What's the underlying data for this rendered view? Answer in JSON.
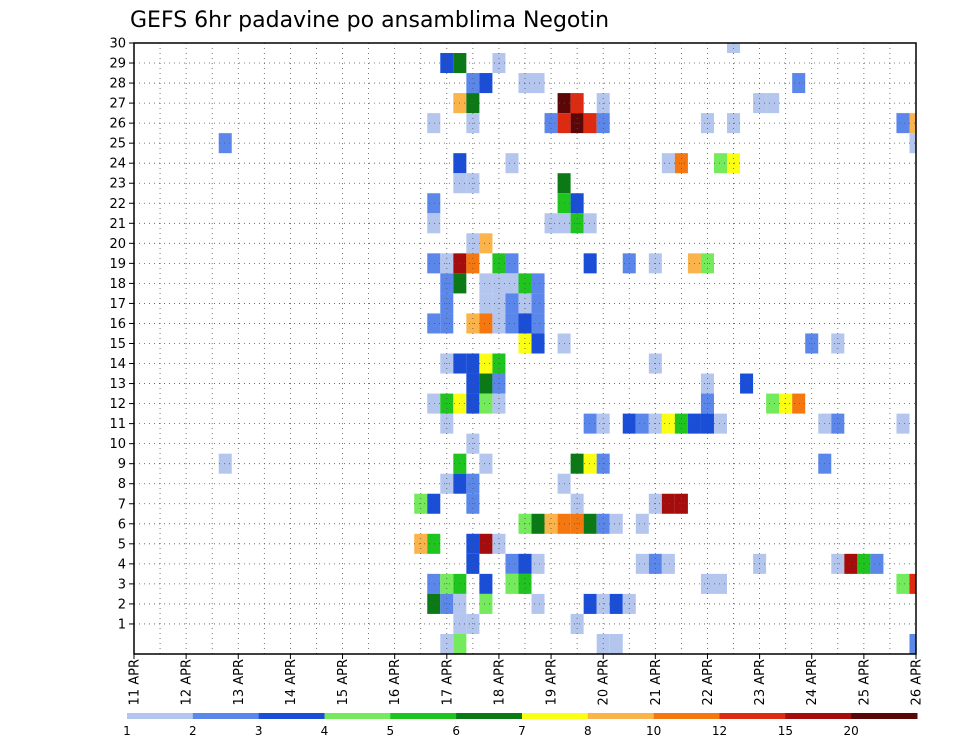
{
  "chart_data": {
    "type": "heatmap",
    "title": "GEFS 6hr padavine po ansamblima Negotin",
    "xlabel": "",
    "ylabel": "",
    "x_ticks": [
      "11 APR",
      "12 APR",
      "13 APR",
      "14 APR",
      "15 APR",
      "16 APR",
      "17 APR",
      "18 APR",
      "19 APR",
      "20 APR",
      "21 APR",
      "22 APR",
      "23 APR",
      "24 APR",
      "25 APR",
      "26 APR"
    ],
    "y_ticks": [
      "1",
      "2",
      "3",
      "4",
      "5",
      "6",
      "7",
      "8",
      "9",
      "10",
      "11",
      "12",
      "13",
      "14",
      "15",
      "16",
      "17",
      "18",
      "19",
      "20",
      "21",
      "22",
      "23",
      "24",
      "25",
      "26",
      "27",
      "28",
      "29",
      "30"
    ],
    "x_range": [
      "11 APR 00Z",
      "26 APR 00Z"
    ],
    "x_step_hours": 6,
    "y_range": [
      0,
      30
    ],
    "grid": true,
    "legend": {
      "position": "bottom",
      "labels": [
        "1",
        "2",
        "3",
        "4",
        "5",
        "6",
        "7",
        "8",
        "10",
        "12",
        "15",
        "20"
      ],
      "colors": [
        "#b4c6ee",
        "#5b87ea",
        "#1a4ed6",
        "#74ea5c",
        "#1fc41f",
        "#0b7a16",
        "#fbff14",
        "#fbb44b",
        "#f4780f",
        "#df2a12",
        "#a50d0d",
        "#5c0707"
      ]
    },
    "cells": [
      {
        "member": 30,
        "step": 46,
        "color": "#b4c6ee"
      },
      {
        "member": 29,
        "step": 24,
        "color": "#1a4ed6"
      },
      {
        "member": 29,
        "step": 25,
        "color": "#0b7a16"
      },
      {
        "member": 29,
        "step": 28,
        "color": "#b4c6ee"
      },
      {
        "member": 28,
        "step": 26,
        "color": "#5b87ea"
      },
      {
        "member": 28,
        "step": 27,
        "color": "#1a4ed6"
      },
      {
        "member": 28,
        "step": 30,
        "color": "#b4c6ee"
      },
      {
        "member": 28,
        "step": 31,
        "color": "#b4c6ee"
      },
      {
        "member": 28,
        "step": 51,
        "color": "#5b87ea"
      },
      {
        "member": 27,
        "step": 25,
        "color": "#fbb44b"
      },
      {
        "member": 27,
        "step": 26,
        "color": "#0b7a16"
      },
      {
        "member": 27,
        "step": 33,
        "color": "#5c0707"
      },
      {
        "member": 27,
        "step": 34,
        "color": "#df2a12"
      },
      {
        "member": 27,
        "step": 36,
        "color": "#b4c6ee"
      },
      {
        "member": 27,
        "step": 48,
        "color": "#b4c6ee"
      },
      {
        "member": 27,
        "step": 49,
        "color": "#b4c6ee"
      },
      {
        "member": 26,
        "step": 23,
        "color": "#b4c6ee"
      },
      {
        "member": 26,
        "step": 26,
        "color": "#b4c6ee"
      },
      {
        "member": 26,
        "step": 32,
        "color": "#5b87ea"
      },
      {
        "member": 26,
        "step": 33,
        "color": "#df2a12"
      },
      {
        "member": 26,
        "step": 34,
        "color": "#5c0707"
      },
      {
        "member": 26,
        "step": 35,
        "color": "#df2a12"
      },
      {
        "member": 26,
        "step": 36,
        "color": "#5b87ea"
      },
      {
        "member": 26,
        "step": 44,
        "color": "#b4c6ee"
      },
      {
        "member": 26,
        "step": 46,
        "color": "#b4c6ee"
      },
      {
        "member": 26,
        "step": 59,
        "color": "#5b87ea"
      },
      {
        "member": 26,
        "step": 60,
        "color": "#fbb44b"
      },
      {
        "member": 25,
        "step": 7,
        "color": "#5b87ea"
      },
      {
        "member": 25,
        "step": 60,
        "color": "#b4c6ee"
      },
      {
        "member": 24,
        "step": 25,
        "color": "#1a4ed6"
      },
      {
        "member": 24,
        "step": 29,
        "color": "#b4c6ee"
      },
      {
        "member": 24,
        "step": 41,
        "color": "#b4c6ee"
      },
      {
        "member": 24,
        "step": 42,
        "color": "#f4780f"
      },
      {
        "member": 24,
        "step": 45,
        "color": "#74ea5c"
      },
      {
        "member": 24,
        "step": 46,
        "color": "#fbff14"
      },
      {
        "member": 23,
        "step": 25,
        "color": "#b4c6ee"
      },
      {
        "member": 23,
        "step": 26,
        "color": "#b4c6ee"
      },
      {
        "member": 23,
        "step": 33,
        "color": "#0b7a16"
      },
      {
        "member": 22,
        "step": 23,
        "color": "#5b87ea"
      },
      {
        "member": 22,
        "step": 33,
        "color": "#1fc41f"
      },
      {
        "member": 22,
        "step": 34,
        "color": "#1a4ed6"
      },
      {
        "member": 21,
        "step": 23,
        "color": "#b4c6ee"
      },
      {
        "member": 21,
        "step": 32,
        "color": "#b4c6ee"
      },
      {
        "member": 21,
        "step": 33,
        "color": "#b4c6ee"
      },
      {
        "member": 21,
        "step": 34,
        "color": "#1fc41f"
      },
      {
        "member": 21,
        "step": 35,
        "color": "#b4c6ee"
      },
      {
        "member": 20,
        "step": 26,
        "color": "#b4c6ee"
      },
      {
        "member": 20,
        "step": 27,
        "color": "#fbb44b"
      },
      {
        "member": 19,
        "step": 23,
        "color": "#5b87ea"
      },
      {
        "member": 19,
        "step": 24,
        "color": "#b4c6ee"
      },
      {
        "member": 19,
        "step": 25,
        "color": "#a50d0d"
      },
      {
        "member": 19,
        "step": 26,
        "color": "#f4780f"
      },
      {
        "member": 19,
        "step": 28,
        "color": "#1fc41f"
      },
      {
        "member": 19,
        "step": 29,
        "color": "#5b87ea"
      },
      {
        "member": 19,
        "step": 35,
        "color": "#1a4ed6"
      },
      {
        "member": 19,
        "step": 38,
        "color": "#5b87ea"
      },
      {
        "member": 19,
        "step": 40,
        "color": "#b4c6ee"
      },
      {
        "member": 19,
        "step": 43,
        "color": "#fbb44b"
      },
      {
        "member": 19,
        "step": 44,
        "color": "#74ea5c"
      },
      {
        "member": 18,
        "step": 24,
        "color": "#5b87ea"
      },
      {
        "member": 18,
        "step": 25,
        "color": "#0b7a16"
      },
      {
        "member": 18,
        "step": 27,
        "color": "#b4c6ee"
      },
      {
        "member": 18,
        "step": 28,
        "color": "#b4c6ee"
      },
      {
        "member": 18,
        "step": 29,
        "color": "#b4c6ee"
      },
      {
        "member": 18,
        "step": 30,
        "color": "#1fc41f"
      },
      {
        "member": 18,
        "step": 31,
        "color": "#5b87ea"
      },
      {
        "member": 17,
        "step": 24,
        "color": "#5b87ea"
      },
      {
        "member": 17,
        "step": 27,
        "color": "#b4c6ee"
      },
      {
        "member": 17,
        "step": 28,
        "color": "#b4c6ee"
      },
      {
        "member": 17,
        "step": 29,
        "color": "#5b87ea"
      },
      {
        "member": 17,
        "step": 30,
        "color": "#b4c6ee"
      },
      {
        "member": 17,
        "step": 31,
        "color": "#5b87ea"
      },
      {
        "member": 16,
        "step": 23,
        "color": "#5b87ea"
      },
      {
        "member": 16,
        "step": 24,
        "color": "#5b87ea"
      },
      {
        "member": 16,
        "step": 26,
        "color": "#fbb44b"
      },
      {
        "member": 16,
        "step": 27,
        "color": "#f4780f"
      },
      {
        "member": 16,
        "step": 28,
        "color": "#b4c6ee"
      },
      {
        "member": 16,
        "step": 29,
        "color": "#5b87ea"
      },
      {
        "member": 16,
        "step": 30,
        "color": "#1a4ed6"
      },
      {
        "member": 16,
        "step": 31,
        "color": "#5b87ea"
      },
      {
        "member": 15,
        "step": 30,
        "color": "#fbff14"
      },
      {
        "member": 15,
        "step": 31,
        "color": "#1a4ed6"
      },
      {
        "member": 15,
        "step": 33,
        "color": "#b4c6ee"
      },
      {
        "member": 15,
        "step": 52,
        "color": "#5b87ea"
      },
      {
        "member": 15,
        "step": 54,
        "color": "#b4c6ee"
      },
      {
        "member": 14,
        "step": 24,
        "color": "#b4c6ee"
      },
      {
        "member": 14,
        "step": 25,
        "color": "#1a4ed6"
      },
      {
        "member": 14,
        "step": 26,
        "color": "#1a4ed6"
      },
      {
        "member": 14,
        "step": 27,
        "color": "#fbff14"
      },
      {
        "member": 14,
        "step": 28,
        "color": "#1fc41f"
      },
      {
        "member": 14,
        "step": 40,
        "color": "#b4c6ee"
      },
      {
        "member": 13,
        "step": 26,
        "color": "#1a4ed6"
      },
      {
        "member": 13,
        "step": 27,
        "color": "#0b7a16"
      },
      {
        "member": 13,
        "step": 28,
        "color": "#5b87ea"
      },
      {
        "member": 13,
        "step": 44,
        "color": "#b4c6ee"
      },
      {
        "member": 13,
        "step": 47,
        "color": "#1a4ed6"
      },
      {
        "member": 12,
        "step": 23,
        "color": "#b4c6ee"
      },
      {
        "member": 12,
        "step": 24,
        "color": "#1fc41f"
      },
      {
        "member": 12,
        "step": 25,
        "color": "#fbff14"
      },
      {
        "member": 12,
        "step": 26,
        "color": "#1a4ed6"
      },
      {
        "member": 12,
        "step": 27,
        "color": "#74ea5c"
      },
      {
        "member": 12,
        "step": 28,
        "color": "#b4c6ee"
      },
      {
        "member": 12,
        "step": 44,
        "color": "#5b87ea"
      },
      {
        "member": 12,
        "step": 49,
        "color": "#74ea5c"
      },
      {
        "member": 12,
        "step": 50,
        "color": "#fbff14"
      },
      {
        "member": 12,
        "step": 51,
        "color": "#f4780f"
      },
      {
        "member": 11,
        "step": 24,
        "color": "#b4c6ee"
      },
      {
        "member": 11,
        "step": 35,
        "color": "#5b87ea"
      },
      {
        "member": 11,
        "step": 36,
        "color": "#b4c6ee"
      },
      {
        "member": 11,
        "step": 38,
        "color": "#1a4ed6"
      },
      {
        "member": 11,
        "step": 39,
        "color": "#5b87ea"
      },
      {
        "member": 11,
        "step": 40,
        "color": "#b4c6ee"
      },
      {
        "member": 11,
        "step": 41,
        "color": "#fbff14"
      },
      {
        "member": 11,
        "step": 42,
        "color": "#1fc41f"
      },
      {
        "member": 11,
        "step": 43,
        "color": "#1a4ed6"
      },
      {
        "member": 11,
        "step": 44,
        "color": "#1a4ed6"
      },
      {
        "member": 11,
        "step": 45,
        "color": "#b4c6ee"
      },
      {
        "member": 11,
        "step": 53,
        "color": "#b4c6ee"
      },
      {
        "member": 11,
        "step": 54,
        "color": "#5b87ea"
      },
      {
        "member": 11,
        "step": 59,
        "color": "#b4c6ee"
      },
      {
        "member": 10,
        "step": 26,
        "color": "#b4c6ee"
      },
      {
        "member": 9,
        "step": 7,
        "color": "#b4c6ee"
      },
      {
        "member": 9,
        "step": 25,
        "color": "#1fc41f"
      },
      {
        "member": 9,
        "step": 27,
        "color": "#b4c6ee"
      },
      {
        "member": 9,
        "step": 34,
        "color": "#0b7a16"
      },
      {
        "member": 9,
        "step": 35,
        "color": "#fbff14"
      },
      {
        "member": 9,
        "step": 36,
        "color": "#5b87ea"
      },
      {
        "member": 9,
        "step": 53,
        "color": "#5b87ea"
      },
      {
        "member": 8,
        "step": 24,
        "color": "#b4c6ee"
      },
      {
        "member": 8,
        "step": 25,
        "color": "#1a4ed6"
      },
      {
        "member": 8,
        "step": 26,
        "color": "#5b87ea"
      },
      {
        "member": 8,
        "step": 33,
        "color": "#b4c6ee"
      },
      {
        "member": 7,
        "step": 22,
        "color": "#74ea5c"
      },
      {
        "member": 7,
        "step": 23,
        "color": "#1a4ed6"
      },
      {
        "member": 7,
        "step": 26,
        "color": "#5b87ea"
      },
      {
        "member": 7,
        "step": 34,
        "color": "#b4c6ee"
      },
      {
        "member": 7,
        "step": 40,
        "color": "#b4c6ee"
      },
      {
        "member": 7,
        "step": 41,
        "color": "#a50d0d"
      },
      {
        "member": 7,
        "step": 42,
        "color": "#a50d0d"
      },
      {
        "member": 6,
        "step": 30,
        "color": "#74ea5c"
      },
      {
        "member": 6,
        "step": 31,
        "color": "#0b7a16"
      },
      {
        "member": 6,
        "step": 32,
        "color": "#fbb44b"
      },
      {
        "member": 6,
        "step": 33,
        "color": "#f4780f"
      },
      {
        "member": 6,
        "step": 34,
        "color": "#f4780f"
      },
      {
        "member": 6,
        "step": 35,
        "color": "#0b7a16"
      },
      {
        "member": 6,
        "step": 36,
        "color": "#5b87ea"
      },
      {
        "member": 6,
        "step": 37,
        "color": "#b4c6ee"
      },
      {
        "member": 6,
        "step": 39,
        "color": "#b4c6ee"
      },
      {
        "member": 5,
        "step": 22,
        "color": "#fbb44b"
      },
      {
        "member": 5,
        "step": 23,
        "color": "#1fc41f"
      },
      {
        "member": 5,
        "step": 26,
        "color": "#1a4ed6"
      },
      {
        "member": 5,
        "step": 27,
        "color": "#a50d0d"
      },
      {
        "member": 5,
        "step": 28,
        "color": "#b4c6ee"
      },
      {
        "member": 4,
        "step": 26,
        "color": "#1a4ed6"
      },
      {
        "member": 4,
        "step": 29,
        "color": "#5b87ea"
      },
      {
        "member": 4,
        "step": 30,
        "color": "#1a4ed6"
      },
      {
        "member": 4,
        "step": 31,
        "color": "#b4c6ee"
      },
      {
        "member": 4,
        "step": 39,
        "color": "#b4c6ee"
      },
      {
        "member": 4,
        "step": 40,
        "color": "#5b87ea"
      },
      {
        "member": 4,
        "step": 41,
        "color": "#b4c6ee"
      },
      {
        "member": 4,
        "step": 48,
        "color": "#b4c6ee"
      },
      {
        "member": 4,
        "step": 54,
        "color": "#b4c6ee"
      },
      {
        "member": 4,
        "step": 55,
        "color": "#a50d0d"
      },
      {
        "member": 4,
        "step": 56,
        "color": "#1fc41f"
      },
      {
        "member": 4,
        "step": 57,
        "color": "#5b87ea"
      },
      {
        "member": 3,
        "step": 23,
        "color": "#5b87ea"
      },
      {
        "member": 3,
        "step": 24,
        "color": "#74ea5c"
      },
      {
        "member": 3,
        "step": 25,
        "color": "#1fc41f"
      },
      {
        "member": 3,
        "step": 27,
        "color": "#1a4ed6"
      },
      {
        "member": 3,
        "step": 29,
        "color": "#74ea5c"
      },
      {
        "member": 3,
        "step": 30,
        "color": "#1fc41f"
      },
      {
        "member": 3,
        "step": 44,
        "color": "#b4c6ee"
      },
      {
        "member": 3,
        "step": 45,
        "color": "#b4c6ee"
      },
      {
        "member": 3,
        "step": 59,
        "color": "#74ea5c"
      },
      {
        "member": 3,
        "step": 60,
        "color": "#df2a12"
      },
      {
        "member": 2,
        "step": 23,
        "color": "#0b7a16"
      },
      {
        "member": 2,
        "step": 24,
        "color": "#5b87ea"
      },
      {
        "member": 2,
        "step": 25,
        "color": "#b4c6ee"
      },
      {
        "member": 2,
        "step": 27,
        "color": "#74ea5c"
      },
      {
        "member": 2,
        "step": 31,
        "color": "#b4c6ee"
      },
      {
        "member": 2,
        "step": 35,
        "color": "#1a4ed6"
      },
      {
        "member": 2,
        "step": 36,
        "color": "#b4c6ee"
      },
      {
        "member": 2,
        "step": 37,
        "color": "#1a4ed6"
      },
      {
        "member": 2,
        "step": 38,
        "color": "#b4c6ee"
      },
      {
        "member": 1,
        "step": 25,
        "color": "#b4c6ee"
      },
      {
        "member": 1,
        "step": 26,
        "color": "#b4c6ee"
      },
      {
        "member": 1,
        "step": 34,
        "color": "#b4c6ee"
      },
      {
        "member": 0,
        "step": 24,
        "color": "#b4c6ee"
      },
      {
        "member": 0,
        "step": 25,
        "color": "#74ea5c"
      },
      {
        "member": 0,
        "step": 36,
        "color": "#b4c6ee"
      },
      {
        "member": 0,
        "step": 37,
        "color": "#b4c6ee"
      },
      {
        "member": 0,
        "step": 60,
        "color": "#5b87ea"
      }
    ]
  }
}
